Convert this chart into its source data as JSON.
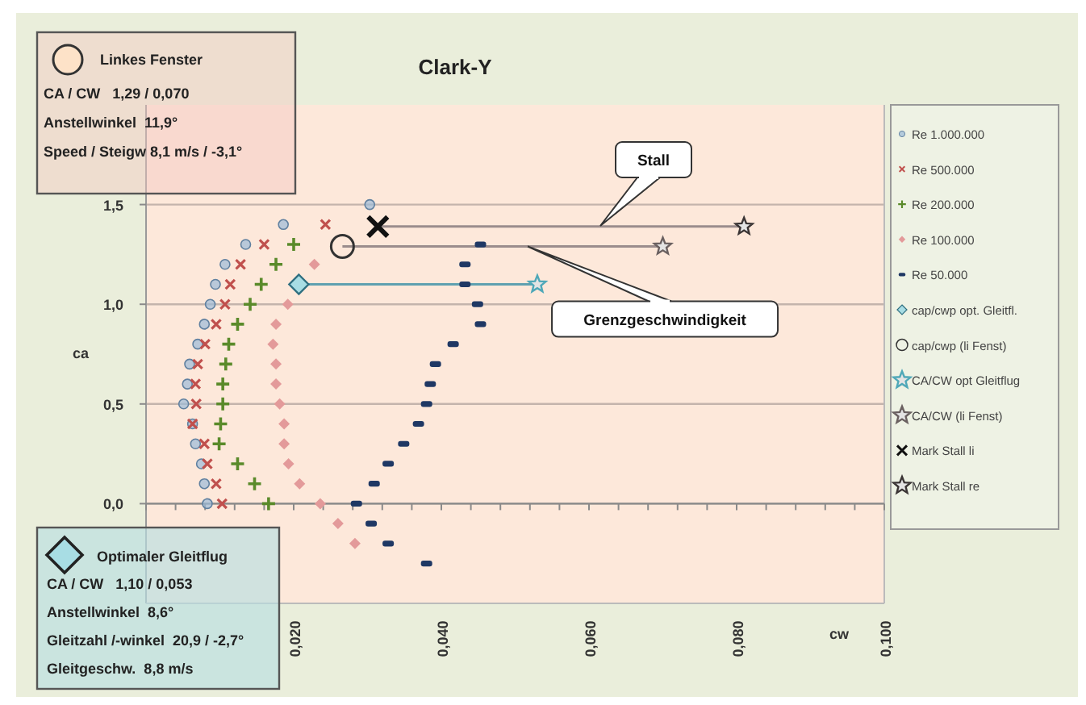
{
  "chart_data": {
    "type": "scatter",
    "title": "Clark-Y",
    "xlabel": "cw",
    "ylabel": "ca",
    "xlim": [
      0,
      0.1
    ],
    "ylim": [
      -0.5,
      2.0
    ],
    "xticks": [
      {
        "value": 0,
        "label": null
      },
      {
        "value": 0.004,
        "label": null
      },
      {
        "value": 0.008,
        "label": null
      },
      {
        "value": 0.012,
        "label": null
      },
      {
        "value": 0.016,
        "label": null
      },
      {
        "value": 0.02,
        "label": "0,020"
      },
      {
        "value": 0.024,
        "label": null
      },
      {
        "value": 0.028,
        "label": null
      },
      {
        "value": 0.032,
        "label": null
      },
      {
        "value": 0.036,
        "label": null
      },
      {
        "value": 0.04,
        "label": "0,040"
      },
      {
        "value": 0.044,
        "label": null
      },
      {
        "value": 0.048,
        "label": null
      },
      {
        "value": 0.052,
        "label": null
      },
      {
        "value": 0.056,
        "label": null
      },
      {
        "value": 0.06,
        "label": "0,060"
      },
      {
        "value": 0.064,
        "label": null
      },
      {
        "value": 0.068,
        "label": null
      },
      {
        "value": 0.072,
        "label": null
      },
      {
        "value": 0.076,
        "label": null
      },
      {
        "value": 0.08,
        "label": "0,080"
      },
      {
        "value": 0.084,
        "label": null
      },
      {
        "value": 0.088,
        "label": null
      },
      {
        "value": 0.092,
        "label": null
      },
      {
        "value": 0.096,
        "label": null
      },
      {
        "value": 0.1,
        "label": "0,100"
      }
    ],
    "yticks": [
      {
        "value": 0,
        "label": "0,0"
      },
      {
        "value": 0.5,
        "label": "0,5"
      },
      {
        "value": 1.0,
        "label": "1,0"
      },
      {
        "value": 1.5,
        "label": "1,5"
      }
    ],
    "grid": "y",
    "legend": "right",
    "series": [
      {
        "type": "line",
        "color": "#9a8c8c",
        "x": [
          0.0314,
          0.081
        ],
        "values": [
          1.39,
          1.39
        ]
      },
      {
        "type": "line",
        "color": "#9a8c8c",
        "x": [
          0.0266,
          0.07
        ],
        "values": [
          1.29,
          1.29
        ]
      },
      {
        "type": "line",
        "color": "#5fa0b0",
        "x": [
          0.0207,
          0.053
        ],
        "values": [
          1.1,
          1.1
        ]
      },
      {
        "name": "Re 1.000.000",
        "color": "#9bbbd9",
        "marker": "circle",
        "x": [
          0.0083,
          0.0079,
          0.0075,
          0.0067,
          0.0063,
          0.0051,
          0.0056,
          0.0059,
          0.007,
          0.0079,
          0.0087,
          0.0094,
          0.0107,
          0.0135,
          0.0186,
          0.0303
        ],
        "values": [
          0.0,
          0.1,
          0.2,
          0.3,
          0.4,
          0.5,
          0.6,
          0.7,
          0.8,
          0.9,
          1.0,
          1.1,
          1.2,
          1.3,
          1.4,
          1.5
        ]
      },
      {
        "name": "Re 500.000",
        "color": "#c0504d",
        "marker": "cross",
        "x": [
          0.0103,
          0.0095,
          0.0083,
          0.0079,
          0.0063,
          0.0068,
          0.0067,
          0.007,
          0.008,
          0.0095,
          0.0107,
          0.0114,
          0.0128,
          0.016,
          0.0243
        ],
        "values": [
          0.0,
          0.1,
          0.2,
          0.3,
          0.4,
          0.5,
          0.6,
          0.7,
          0.8,
          0.9,
          1.0,
          1.1,
          1.2,
          1.3,
          1.4
        ]
      },
      {
        "name": "Re 200.000",
        "color": "#5a8a2a",
        "marker": "plus",
        "x": [
          0.0166,
          0.0147,
          0.0124,
          0.0099,
          0.0101,
          0.0104,
          0.0104,
          0.0108,
          0.0112,
          0.0124,
          0.0141,
          0.0156,
          0.0176,
          0.02
        ],
        "values": [
          0.0,
          0.1,
          0.2,
          0.3,
          0.4,
          0.5,
          0.6,
          0.7,
          0.8,
          0.9,
          1.0,
          1.1,
          1.2,
          1.3
        ]
      },
      {
        "name": "Re 100.000",
        "color": "#e39a9a",
        "marker": "diamond",
        "x": [
          0.0283,
          0.026,
          0.0236,
          0.0208,
          0.0193,
          0.0187,
          0.0187,
          0.0181,
          0.0176,
          0.0176,
          0.0172,
          0.0176,
          0.0192,
          0.0228
        ],
        "values": [
          -0.2,
          -0.1,
          0.0,
          0.1,
          0.2,
          0.3,
          0.4,
          0.5,
          0.6,
          0.7,
          0.8,
          0.9,
          1.0,
          1.2
        ]
      },
      {
        "name": "Re 50.000",
        "color": "#1f3864",
        "marker": "square",
        "x": [
          0.038,
          0.0328,
          0.0305,
          0.0285,
          0.0309,
          0.0328,
          0.0349,
          0.0369,
          0.038,
          0.0385,
          0.0392,
          0.0416,
          0.0453,
          0.0449,
          0.0432,
          0.0432,
          0.0453
        ],
        "values": [
          -0.3,
          -0.2,
          -0.1,
          0.0,
          0.1,
          0.2,
          0.3,
          0.4,
          0.5,
          0.6,
          0.7,
          0.8,
          0.9,
          1.0,
          1.1,
          1.2,
          1.3
        ]
      },
      {
        "name": "cap/cwp opt. Gleitfl.",
        "color": "#2f6f80",
        "marker": "diamond",
        "x": [
          0.0207
        ],
        "values": [
          1.1
        ]
      },
      {
        "name": "cap/cwp (li Fenst)",
        "color": "#333333",
        "marker": "circle",
        "x": [
          0.0266
        ],
        "values": [
          1.29
        ]
      },
      {
        "name": "CA/CW opt Gleitflug",
        "color": "#4fa8b8",
        "marker": "star",
        "x": [
          0.053
        ],
        "values": [
          1.1
        ]
      },
      {
        "name": "CA/CW (li Fenst)",
        "color": "#6a6060",
        "marker": "star",
        "x": [
          0.07
        ],
        "values": [
          1.29
        ]
      },
      {
        "name": "Mark Stall li",
        "color": "#111111",
        "marker": "cross",
        "x": [
          0.0314
        ],
        "values": [
          1.39
        ]
      },
      {
        "name": "Mark Stall re",
        "color": "#3a3434",
        "marker": "star",
        "x": [
          0.081
        ],
        "values": [
          1.39
        ]
      }
    ],
    "annotations": [
      "Linkes Fenster",
      "CA / CW   1,29 / 0,070",
      "Anstellwinkel  11,9°",
      "Speed / Steigw 8,1 m/s / -3,1°",
      "Optimaler Gleitflug",
      "CA / CW   1,10 / 0,053",
      "Anstellwinkel  8,6°",
      "Gleitzahl /-winkel  20,9 / -2,7°",
      "Gleitgeschw.  8,8 m/s",
      "Stall",
      {
        "text": "Grenzgeschwindigkeit",
        "x": 0.0517,
        "y": 1.29
      }
    ]
  }
}
